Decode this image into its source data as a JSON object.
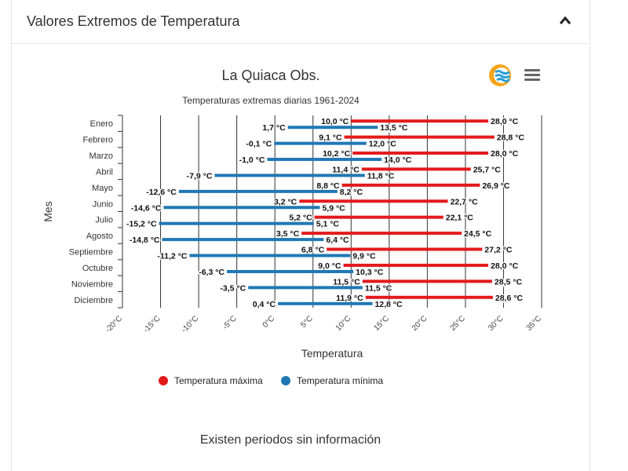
{
  "panel": {
    "title": "Valores Extremos de Temperatura"
  },
  "note": "Existen periodos sin información",
  "colors": {
    "max": "#e31a1c",
    "min": "#1f78b4"
  },
  "chart_data": {
    "type": "bar",
    "title": "La Quiaca Obs.",
    "subtitle": "Temperaturas extremas diarias 1961-2024",
    "xlabel": "Temperatura",
    "ylabel": "Mes",
    "xlim": [
      -20,
      35
    ],
    "xticks": [
      -20,
      -15,
      -10,
      -5,
      0,
      5,
      10,
      15,
      20,
      25,
      30,
      35
    ],
    "xtick_labels": [
      "-20°C",
      "-15°C",
      "-10°C",
      "-5°C",
      "0°C",
      "5°C",
      "10°C",
      "15°C",
      "20°C",
      "25°C",
      "30°C",
      "35°C"
    ],
    "grid": true,
    "legend_position": "bottom",
    "categories": [
      "Enero",
      "Febrero",
      "Marzo",
      "Abril",
      "Mayo",
      "Junio",
      "Julio",
      "Agosto",
      "Septiembre",
      "Octubre",
      "Noviembre",
      "Diciembre"
    ],
    "series": [
      {
        "name": "Temperatura máxima",
        "low": [
          10.0,
          9.1,
          10.2,
          11.4,
          8.8,
          3.2,
          5.2,
          3.5,
          6.8,
          9.0,
          11.5,
          11.9
        ],
        "high": [
          28.0,
          28.8,
          28.0,
          25.7,
          26.9,
          22.7,
          22.1,
          24.5,
          27.2,
          28.0,
          28.5,
          28.6
        ],
        "low_labels": [
          "10,0 °C",
          "9,1 °C",
          "10,2 °C",
          "11,4 °C",
          "8,8 °C",
          "3,2 °C",
          "5,2 °C",
          "3,5 °C",
          "6,8 °C",
          "9,0 °C",
          "11,5 °C",
          "11,9 °C"
        ],
        "high_labels": [
          "28,0 °C",
          "28,8 °C",
          "28,0 °C",
          "25,7 °C",
          "26,9 °C",
          "22,7 °C",
          "22,1 °C",
          "24,5 °C",
          "27,2 °C",
          "28,0 °C",
          "28,5 °C",
          "28,6 °C"
        ]
      },
      {
        "name": "Temperatura mínima",
        "low": [
          1.7,
          -0.1,
          -1.0,
          -7.9,
          -12.6,
          -14.6,
          -15.2,
          -14.8,
          -11.2,
          -6.3,
          -3.5,
          0.4
        ],
        "high": [
          13.5,
          12.0,
          14.0,
          11.8,
          8.2,
          5.9,
          5.1,
          6.4,
          9.9,
          10.3,
          11.5,
          12.8
        ],
        "low_labels": [
          "1,7 °C",
          "-0,1 °C",
          "-1,0 °C",
          "-7,9 °C",
          "-12,6 °C",
          "-14,6 °C",
          "-15,2 °C",
          "-14,8 °C",
          "-11,2 °C",
          "-6,3 °C",
          "-3,5 °C",
          "0,4 °C"
        ],
        "high_labels": [
          "13,5 °C",
          "12,0 °C",
          "14,0 °C",
          "11,8 °C",
          "8,2 °C",
          "5,9 °C",
          "5,1 °C",
          "6,4 °C",
          "9,9 °C",
          "10,3 °C",
          "11,5 °C",
          "12,8 °C"
        ]
      }
    ]
  }
}
